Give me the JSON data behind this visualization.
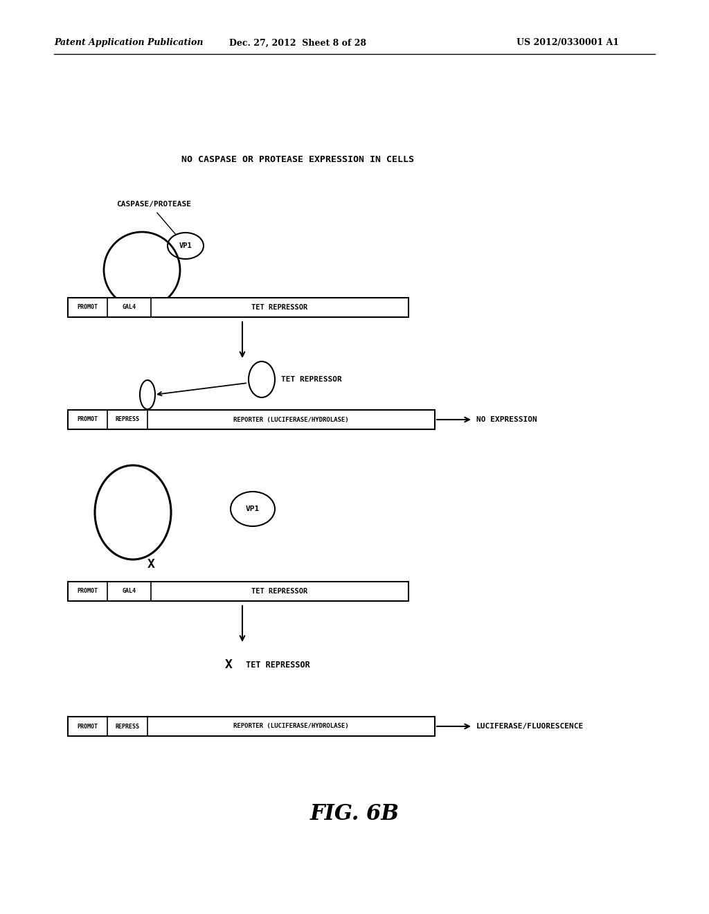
{
  "bg_color": "#ffffff",
  "header_left": "Patent Application Publication",
  "header_mid": "Dec. 27, 2012  Sheet 8 of 28",
  "header_right": "US 2012/0330001 A1",
  "fig_label": "FIG. 6B",
  "title_text": "NO CASPASE OR PROTEASE EXPRESSION IN CELLS",
  "figsize": [
    10.24,
    13.2
  ],
  "dpi": 100
}
